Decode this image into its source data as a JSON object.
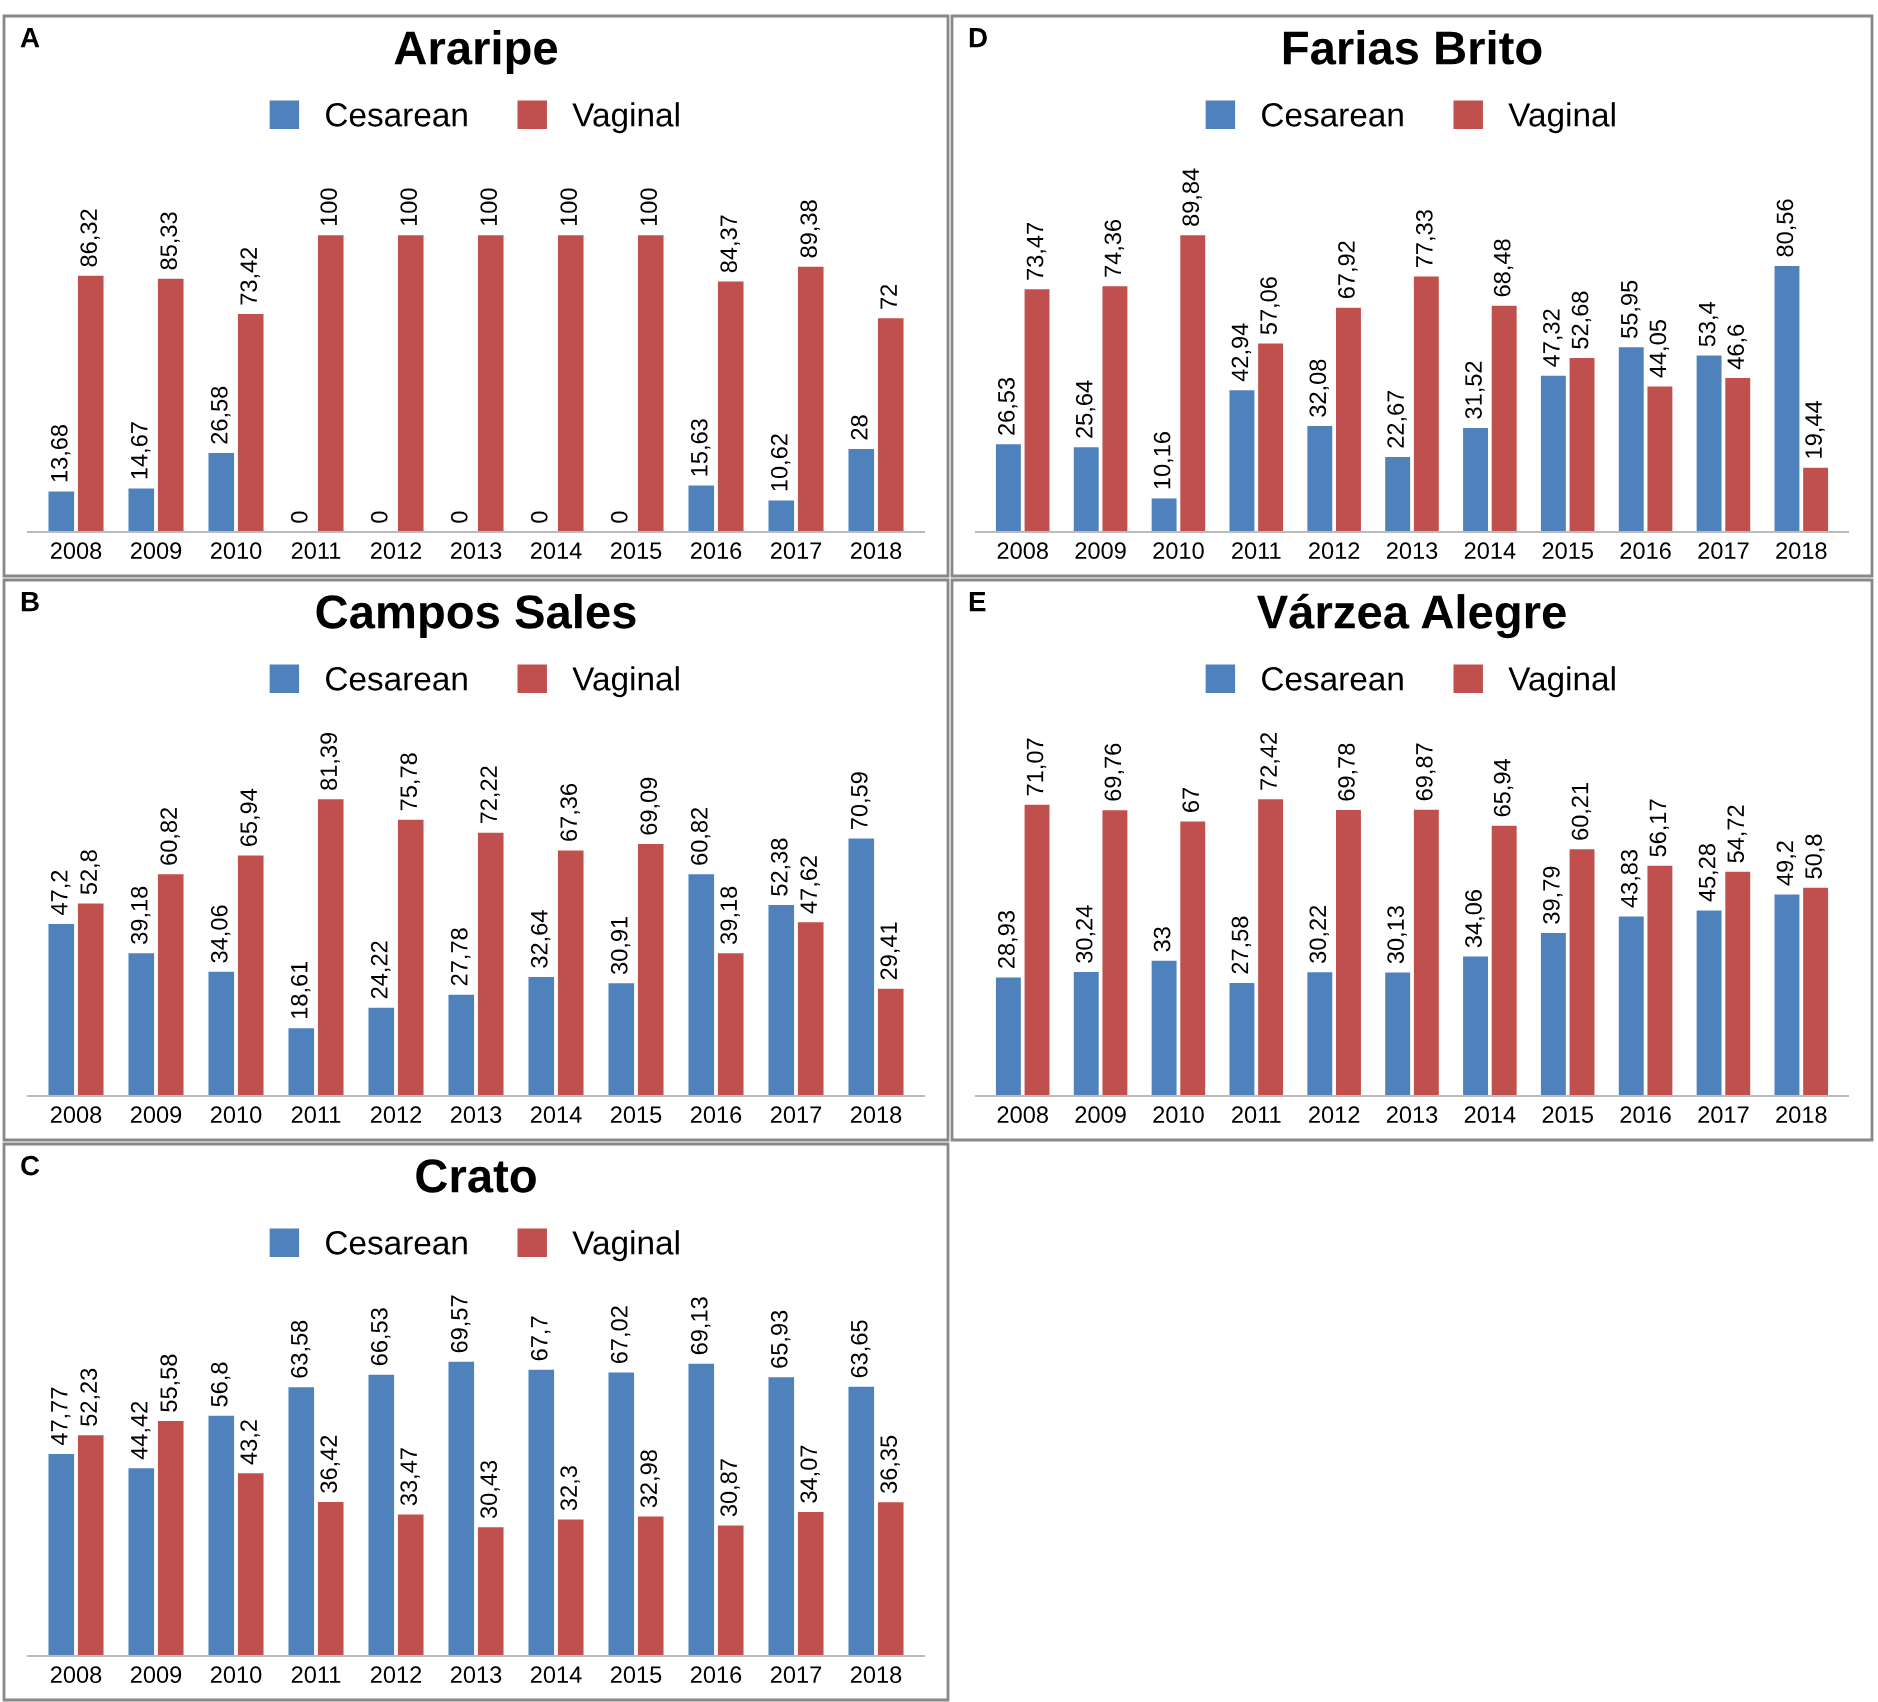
{
  "chart_data": [
    {
      "type": "bar",
      "title": "Araripe",
      "annotations": [
        "A"
      ],
      "legend": "top",
      "tick_labels": "x",
      "categories": [
        "2008",
        "2009",
        "2010",
        "2011",
        "2012",
        "2013",
        "2014",
        "2015",
        "2016",
        "2017",
        "2018"
      ],
      "series": [
        {
          "name": "Cesarean",
          "color": "#4f81bd",
          "values": [
            13.68,
            14.67,
            26.58,
            0,
            0,
            0,
            0,
            0,
            15.63,
            10.62,
            28
          ],
          "value_labels": [
            "13,68",
            "14,67",
            "26,58",
            "0",
            "0",
            "0",
            "0",
            "0",
            "15,63",
            "10,62",
            "28"
          ]
        },
        {
          "name": "Vaginal",
          "color": "#c0504d",
          "values": [
            86.32,
            85.33,
            73.42,
            100,
            100,
            100,
            100,
            100,
            84.37,
            89.38,
            72
          ],
          "value_labels": [
            "86,32",
            "85,33",
            "73,42",
            "100",
            "100",
            "100",
            "100",
            "100",
            "84,37",
            "89,38",
            "72"
          ]
        }
      ]
    },
    {
      "type": "bar",
      "title": "Campos Sales",
      "annotations": [
        "B"
      ],
      "legend": "top",
      "tick_labels": "x",
      "categories": [
        "2008",
        "2009",
        "2010",
        "2011",
        "2012",
        "2013",
        "2014",
        "2015",
        "2016",
        "2017",
        "2018"
      ],
      "series": [
        {
          "name": "Cesarean",
          "color": "#4f81bd",
          "values": [
            47.2,
            39.18,
            34.06,
            18.61,
            24.22,
            27.78,
            32.64,
            30.91,
            60.82,
            52.38,
            70.59
          ],
          "value_labels": [
            "47,2",
            "39,18",
            "34,06",
            "18,61",
            "24,22",
            "27,78",
            "32,64",
            "30,91",
            "60,82",
            "52,38",
            "70,59"
          ]
        },
        {
          "name": "Vaginal",
          "color": "#c0504d",
          "values": [
            52.8,
            60.82,
            65.94,
            81.39,
            75.78,
            72.22,
            67.36,
            69.09,
            39.18,
            47.62,
            29.41
          ],
          "value_labels": [
            "52,8",
            "60,82",
            "65,94",
            "81,39",
            "75,78",
            "72,22",
            "67,36",
            "69,09",
            "39,18",
            "47,62",
            "29,41"
          ]
        }
      ]
    },
    {
      "type": "bar",
      "title": "Crato",
      "annotations": [
        "C"
      ],
      "legend": "top",
      "tick_labels": "x",
      "categories": [
        "2008",
        "2009",
        "2010",
        "2011",
        "2012",
        "2013",
        "2014",
        "2015",
        "2016",
        "2017",
        "2018"
      ],
      "series": [
        {
          "name": "Cesarean",
          "color": "#4f81bd",
          "values": [
            47.77,
            44.42,
            56.8,
            63.58,
            66.53,
            69.57,
            67.7,
            67.02,
            69.13,
            65.93,
            63.65
          ],
          "value_labels": [
            "47,77",
            "44,42",
            "56,8",
            "63,58",
            "66,53",
            "69,57",
            "67,7",
            "67,02",
            "69,13",
            "65,93",
            "63,65"
          ]
        },
        {
          "name": "Vaginal",
          "color": "#c0504d",
          "values": [
            52.23,
            55.58,
            43.2,
            36.42,
            33.47,
            30.43,
            32.3,
            32.98,
            30.87,
            34.07,
            36.35
          ],
          "value_labels": [
            "52,23",
            "55,58",
            "43,2",
            "36,42",
            "33,47",
            "30,43",
            "32,3",
            "32,98",
            "30,87",
            "34,07",
            "36,35"
          ]
        }
      ]
    },
    {
      "type": "bar",
      "title": "Farias Brito",
      "annotations": [
        "D"
      ],
      "legend": "top",
      "tick_labels": "x",
      "categories": [
        "2008",
        "2009",
        "2010",
        "2011",
        "2012",
        "2013",
        "2014",
        "2015",
        "2016",
        "2017",
        "2018"
      ],
      "series": [
        {
          "name": "Cesarean",
          "color": "#4f81bd",
          "values": [
            26.53,
            25.64,
            10.16,
            42.94,
            32.08,
            22.67,
            31.52,
            47.32,
            55.95,
            53.4,
            80.56
          ],
          "value_labels": [
            "26,53",
            "25,64",
            "10,16",
            "42,94",
            "32,08",
            "22,67",
            "31,52",
            "47,32",
            "55,95",
            "53,4",
            "80,56"
          ]
        },
        {
          "name": "Vaginal",
          "color": "#c0504d",
          "values": [
            73.47,
            74.36,
            89.84,
            57.06,
            67.92,
            77.33,
            68.48,
            52.68,
            44.05,
            46.6,
            19.44
          ],
          "value_labels": [
            "73,47",
            "74,36",
            "89,84",
            "57,06",
            "67,92",
            "77,33",
            "68,48",
            "52,68",
            "44,05",
            "46,6",
            "19,44"
          ]
        }
      ]
    },
    {
      "type": "bar",
      "title": "Várzea Alegre",
      "annotations": [
        "E"
      ],
      "legend": "top",
      "tick_labels": "x",
      "categories": [
        "2008",
        "2009",
        "2010",
        "2011",
        "2012",
        "2013",
        "2014",
        "2015",
        "2016",
        "2017",
        "2018"
      ],
      "series": [
        {
          "name": "Cesarean",
          "color": "#4f81bd",
          "values": [
            28.93,
            30.24,
            33,
            27.58,
            30.22,
            30.13,
            34.06,
            39.79,
            43.83,
            45.28,
            49.2
          ],
          "value_labels": [
            "28,93",
            "30,24",
            "33",
            "27,58",
            "30,22",
            "30,13",
            "34,06",
            "39,79",
            "43,83",
            "45,28",
            "49,2"
          ]
        },
        {
          "name": "Vaginal",
          "color": "#c0504d",
          "values": [
            71.07,
            69.76,
            67,
            72.42,
            69.78,
            69.87,
            65.94,
            60.21,
            56.17,
            54.72,
            50.8
          ],
          "value_labels": [
            "71,07",
            "69,76",
            "67",
            "72,42",
            "69,78",
            "69,87",
            "65,94",
            "60,21",
            "56,17",
            "54,72",
            "50,8"
          ]
        }
      ]
    }
  ]
}
